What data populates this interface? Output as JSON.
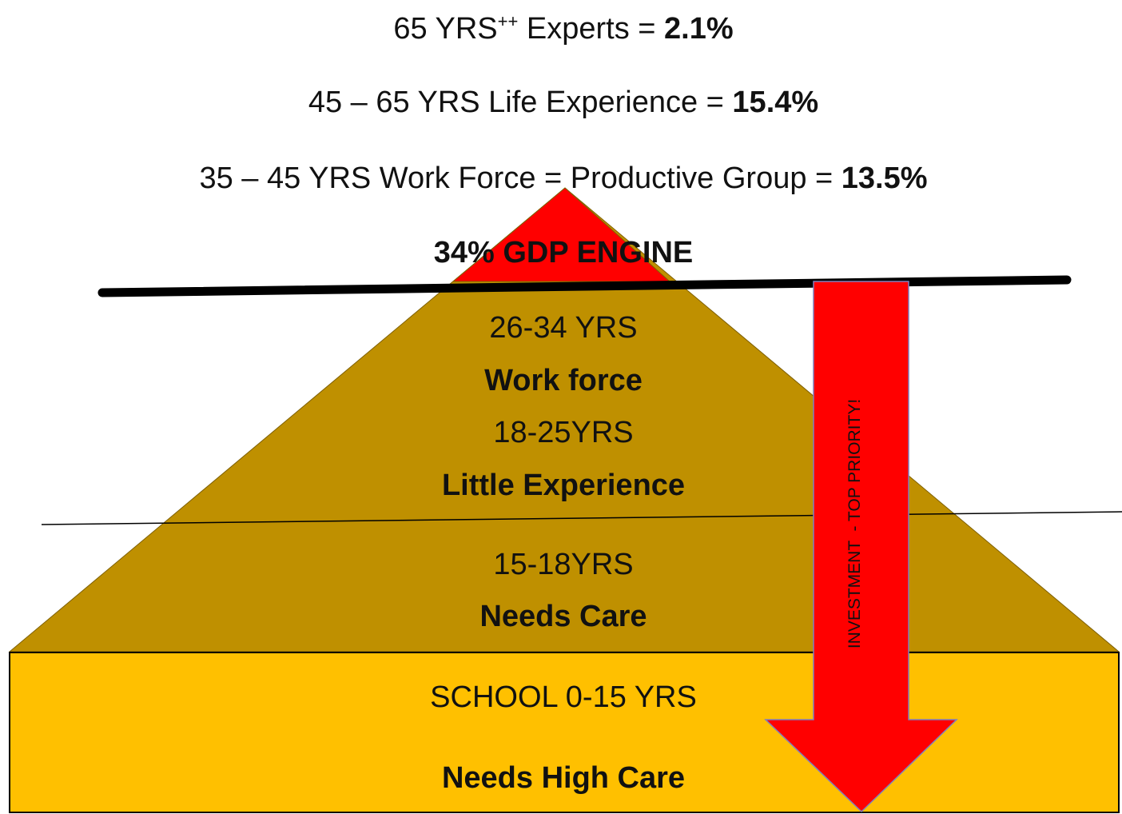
{
  "header": {
    "lines": [
      {
        "label": "65 YRS",
        "sup": "++",
        "rest": " Experts = ",
        "value": "2.1%"
      },
      {
        "label": "45 – 65 YRS Life Experience = ",
        "value": "15.4%"
      },
      {
        "label": "35 – 45 YRS Work Force = Productive Group = ",
        "value": "13.5%"
      }
    ]
  },
  "engine": "34% GDP ENGINE",
  "pyramid": {
    "levels": [
      {
        "age": "26-34 YRS",
        "desc": "Work force"
      },
      {
        "age": "18-25YRS",
        "desc": "Little Experience"
      },
      {
        "age": "15-18YRS",
        "desc": "Needs Care"
      }
    ]
  },
  "base": {
    "age": "SCHOOL 0-15 YRS",
    "desc": "Needs High Care"
  },
  "arrow": "INVESTMENT  - TOP PRIORITY!"
}
